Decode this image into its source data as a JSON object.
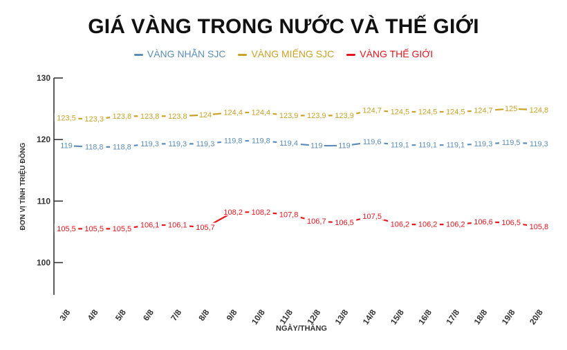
{
  "chart_data": {
    "type": "line",
    "title": "GIÁ VÀNG TRONG NƯỚC VÀ THẾ GIỚI",
    "xlabel": "NGÀY/THÁNG",
    "ylabel": "ĐƠN VỊ TÍNH TRIỆU ĐỒNG",
    "ylim": [
      95,
      130
    ],
    "yticks": [
      "100",
      "110",
      "120",
      "130"
    ],
    "grid": false,
    "legend_position": "top",
    "categories": [
      "3/8",
      "4/8",
      "5/8",
      "6/8",
      "7/8",
      "8/8",
      "9/8",
      "10/8",
      "11/8",
      "12/8",
      "13/8",
      "14/8",
      "15/8",
      "16/8",
      "17/8",
      "18/8",
      "19/8",
      "20/8"
    ],
    "series": [
      {
        "name": "VÀNG NHẪN SJC",
        "color": "#5b8db8",
        "values": [
          119,
          118.8,
          118.8,
          119.3,
          119.3,
          119.3,
          119.8,
          119.8,
          119.4,
          119,
          119,
          119.6,
          119.1,
          119.1,
          119.1,
          119.3,
          119.5,
          119.3
        ],
        "labels": [
          "119",
          "118,8",
          "118,8",
          "119,3",
          "119,3",
          "119,3",
          "119,8",
          "119,8",
          "119,4",
          "119",
          "119",
          "119,6",
          "119,1",
          "119,1",
          "119,1",
          "119,3",
          "119,5",
          "119,3"
        ]
      },
      {
        "name": "VÀNG MIẾNG SJC",
        "color": "#c9a227",
        "values": [
          123.5,
          123.3,
          123.8,
          123.8,
          123.8,
          124,
          124.4,
          124.4,
          123.9,
          123.9,
          123.9,
          124.7,
          124.5,
          124.5,
          124.5,
          124.7,
          125,
          124.8
        ],
        "labels": [
          "123,5",
          "123,3",
          "123,8",
          "123,8",
          "123,8",
          "124",
          "124,4",
          "124,4",
          "123,9",
          "123,9",
          "123,9",
          "124,7",
          "124,5",
          "124,5",
          "124,5",
          "124,7",
          "125",
          "124,8"
        ]
      },
      {
        "name": "VÀNG THẾ GIỚI",
        "color": "#e8141c",
        "values": [
          105.5,
          105.5,
          105.5,
          106.1,
          106.1,
          105.7,
          108.2,
          108.2,
          107.8,
          106.7,
          106.5,
          107.5,
          106.2,
          106.2,
          106.2,
          106.6,
          106.5,
          105.8
        ],
        "labels": [
          "105,5",
          "105,5",
          "105,5",
          "106,1",
          "106,1",
          "105,7",
          "108,2",
          "108,2",
          "107,8",
          "106,7",
          "106,5",
          "107,5",
          "106,2",
          "106,2",
          "106,2",
          "106,6",
          "106,5",
          "105,8"
        ]
      }
    ]
  }
}
